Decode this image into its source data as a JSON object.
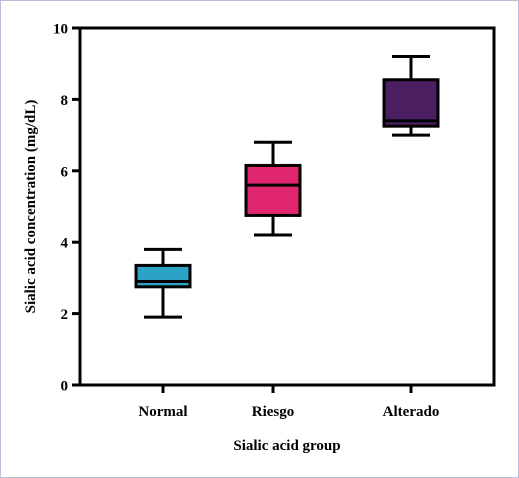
{
  "chart_data": {
    "type": "boxplot",
    "title": "",
    "xlabel": "Sialic acid group",
    "ylabel": "Sialic acid concentration (mg/dL)",
    "ylim": [
      0,
      10
    ],
    "yticks": [
      "0",
      "2",
      "4",
      "6",
      "8",
      "10"
    ],
    "grid": false,
    "legend": "none",
    "categories": [
      "Normal",
      "Riesgo",
      "Alterado"
    ],
    "boxes": [
      {
        "category": "Normal",
        "min": 1.9,
        "q1": 2.75,
        "median": 2.9,
        "q3": 3.35,
        "max": 3.8,
        "color": "#2ba3c4"
      },
      {
        "category": "Riesgo",
        "min": 4.2,
        "q1": 4.75,
        "median": 5.6,
        "q3": 6.15,
        "max": 6.8,
        "color": "#e0266f"
      },
      {
        "category": "Alterado",
        "min": 7.0,
        "q1": 7.25,
        "median": 7.4,
        "q3": 8.55,
        "max": 9.2,
        "color": "#4c1f63"
      }
    ]
  }
}
